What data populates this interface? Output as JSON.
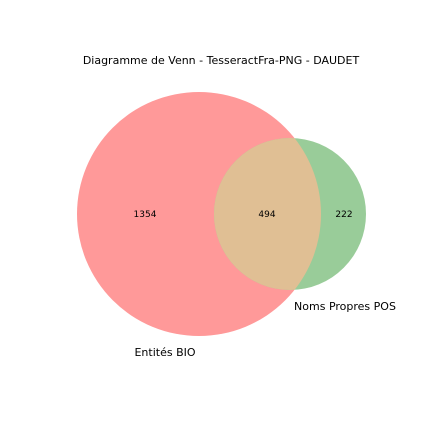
{
  "title": "Diagramme de Venn - TesseractFra-PNG - DAUDET",
  "sets": [
    {
      "name": "Entités BIO",
      "color": "#ff9999"
    },
    {
      "name": "Noms Propres POS",
      "color": "#99cc99"
    }
  ],
  "intersection_color": "#e0bf94",
  "counts": {
    "only_a": "1354",
    "both": "494",
    "only_b": "222"
  }
}
